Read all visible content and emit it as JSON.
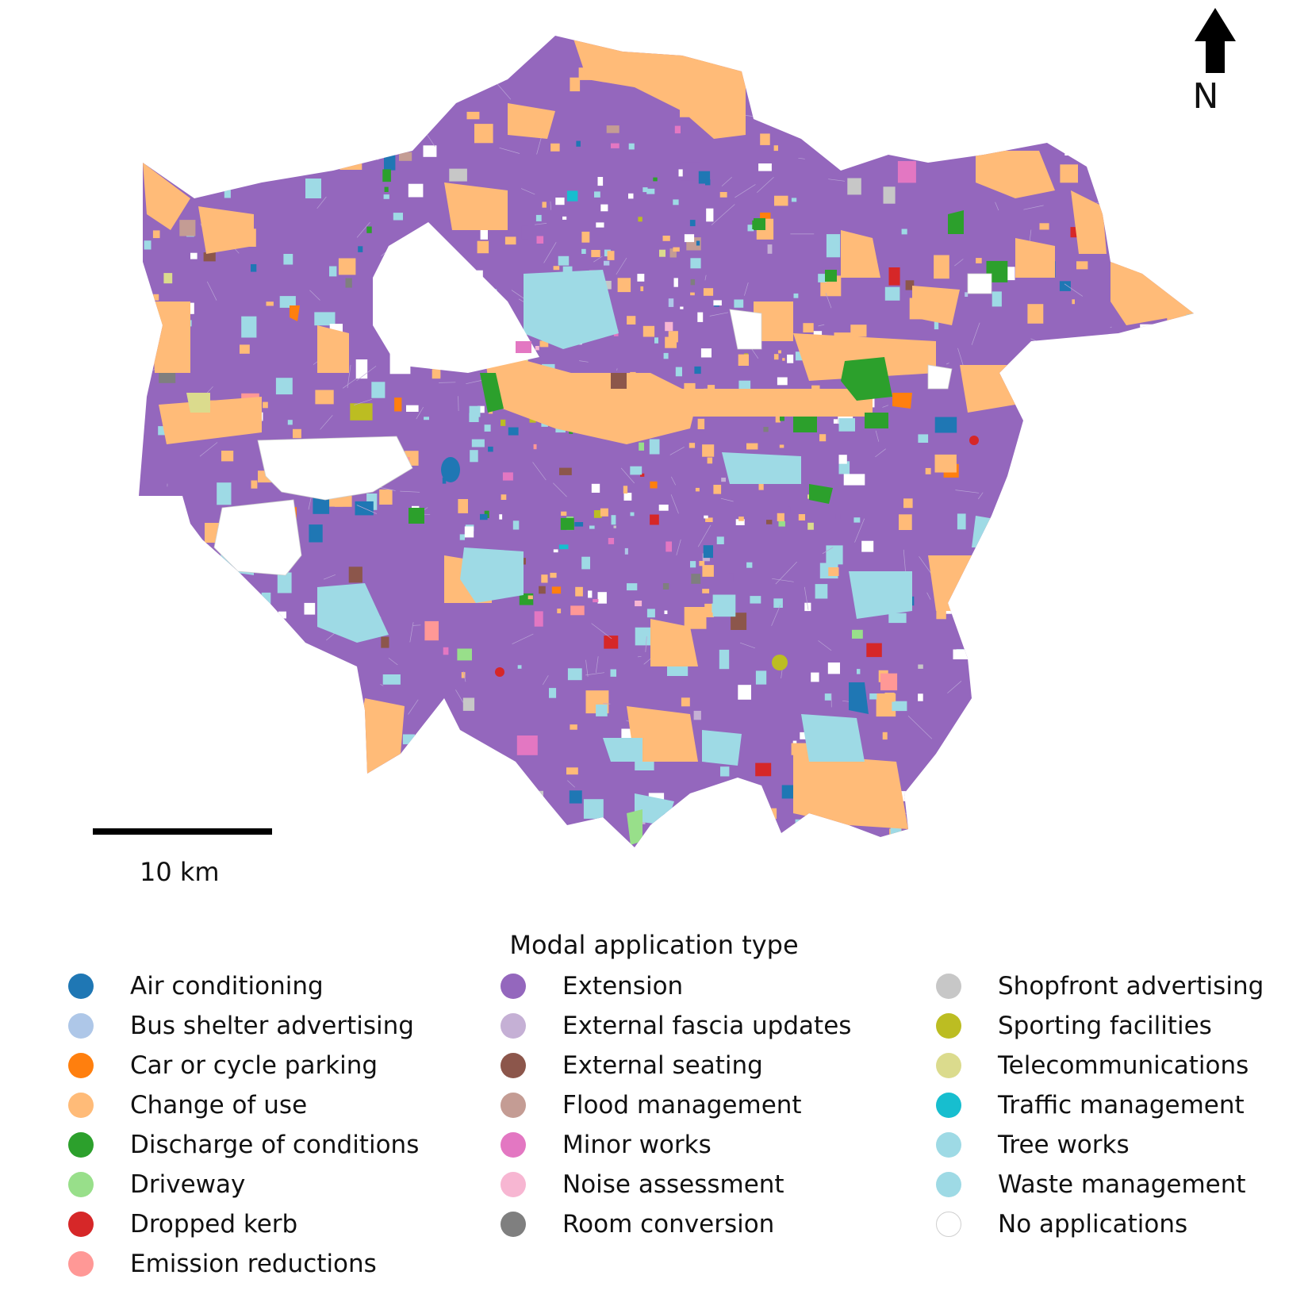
{
  "north": {
    "label": "N"
  },
  "scale_bar": {
    "label": "10 km"
  },
  "legend": {
    "title": "Modal application type",
    "columns": [
      [
        {
          "label": "Air conditioning",
          "color": "#1f77b4"
        },
        {
          "label": "Bus shelter advertising",
          "color": "#aec7e8"
        },
        {
          "label": "Car or cycle parking",
          "color": "#ff7f0e"
        },
        {
          "label": "Change of use",
          "color": "#ffbb78"
        },
        {
          "label": "Discharge of conditions",
          "color": "#2ca02c"
        },
        {
          "label": "Driveway",
          "color": "#98df8a"
        },
        {
          "label": "Dropped kerb",
          "color": "#d62728"
        },
        {
          "label": "Emission reductions",
          "color": "#ff9896"
        }
      ],
      [
        {
          "label": "Extension",
          "color": "#9467bd"
        },
        {
          "label": "External fascia updates",
          "color": "#c5b0d5"
        },
        {
          "label": "External seating",
          "color": "#8c564b"
        },
        {
          "label": "Flood management",
          "color": "#c49c94"
        },
        {
          "label": "Minor works",
          "color": "#e377c2"
        },
        {
          "label": "Noise assessment",
          "color": "#f7b6d2"
        },
        {
          "label": "Room conversion",
          "color": "#7f7f7f"
        }
      ],
      [
        {
          "label": "Shopfront advertising",
          "color": "#c7c7c7"
        },
        {
          "label": "Sporting facilities",
          "color": "#bcbd22"
        },
        {
          "label": "Telecommunications",
          "color": "#dbdb8d"
        },
        {
          "label": "Traffic management",
          "color": "#17becf"
        },
        {
          "label": "Tree works",
          "color": "#9edae5"
        },
        {
          "label": "Waste management",
          "color": "#9edae5"
        },
        {
          "label": "No applications",
          "color": "#ffffff"
        }
      ]
    ]
  }
}
